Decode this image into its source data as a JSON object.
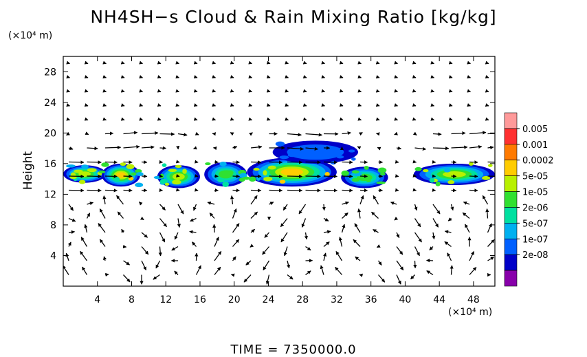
{
  "chart_data": {
    "type": "heatmap",
    "title": "NH4SH−s Cloud & Rain Mixing Ratio [kg/kg]",
    "ylabel": "Height",
    "x_unit": "(×10⁴ m)",
    "y_unit": "(×10⁴ m)",
    "xlim": [
      0,
      50.5
    ],
    "ylim": [
      0,
      30
    ],
    "x_ticks": [
      4,
      8,
      12,
      16,
      20,
      24,
      28,
      32,
      36,
      40,
      44,
      48
    ],
    "y_ticks": [
      4,
      8,
      12,
      16,
      20,
      24,
      28
    ],
    "colorbar": {
      "labels": [
        "0.005",
        "0.001",
        "0.0002",
        "5e-05",
        "1e-05",
        "2e-06",
        "5e-07",
        "1e-07",
        "2e-08"
      ],
      "colors": [
        "#ff9a9a",
        "#ff3030",
        "#ff7a00",
        "#ffcc00",
        "#b8f000",
        "#30e030",
        "#00e0a0",
        "#00b0f0",
        "#0060ff",
        "#0000c8",
        "#8800aa"
      ]
    },
    "cloud_regions": [
      {
        "x0": 0.0,
        "x1": 5.0,
        "y0": 13.5,
        "y1": 15.8,
        "level": "5e-05"
      },
      {
        "x0": 4.5,
        "x1": 9.0,
        "y0": 13.0,
        "y1": 16.0,
        "level": "0.0002"
      },
      {
        "x0": 11.0,
        "x1": 16.0,
        "y0": 12.8,
        "y1": 15.8,
        "level": "5e-05"
      },
      {
        "x0": 16.5,
        "x1": 21.5,
        "y0": 13.0,
        "y1": 16.2,
        "level": "1e-05"
      },
      {
        "x0": 21.5,
        "x1": 32.0,
        "y0": 13.0,
        "y1": 16.8,
        "level": "0.0002"
      },
      {
        "x0": 24.5,
        "x1": 34.5,
        "y0": 16.0,
        "y1": 19.0,
        "level": "1e-07"
      },
      {
        "x0": 32.5,
        "x1": 38.0,
        "y0": 12.8,
        "y1": 15.6,
        "level": "1e-05"
      },
      {
        "x0": 41.0,
        "x1": 50.5,
        "y0": 13.2,
        "y1": 16.0,
        "level": "5e-05"
      }
    ]
  },
  "time_label": "TIME  =  7350000.0"
}
